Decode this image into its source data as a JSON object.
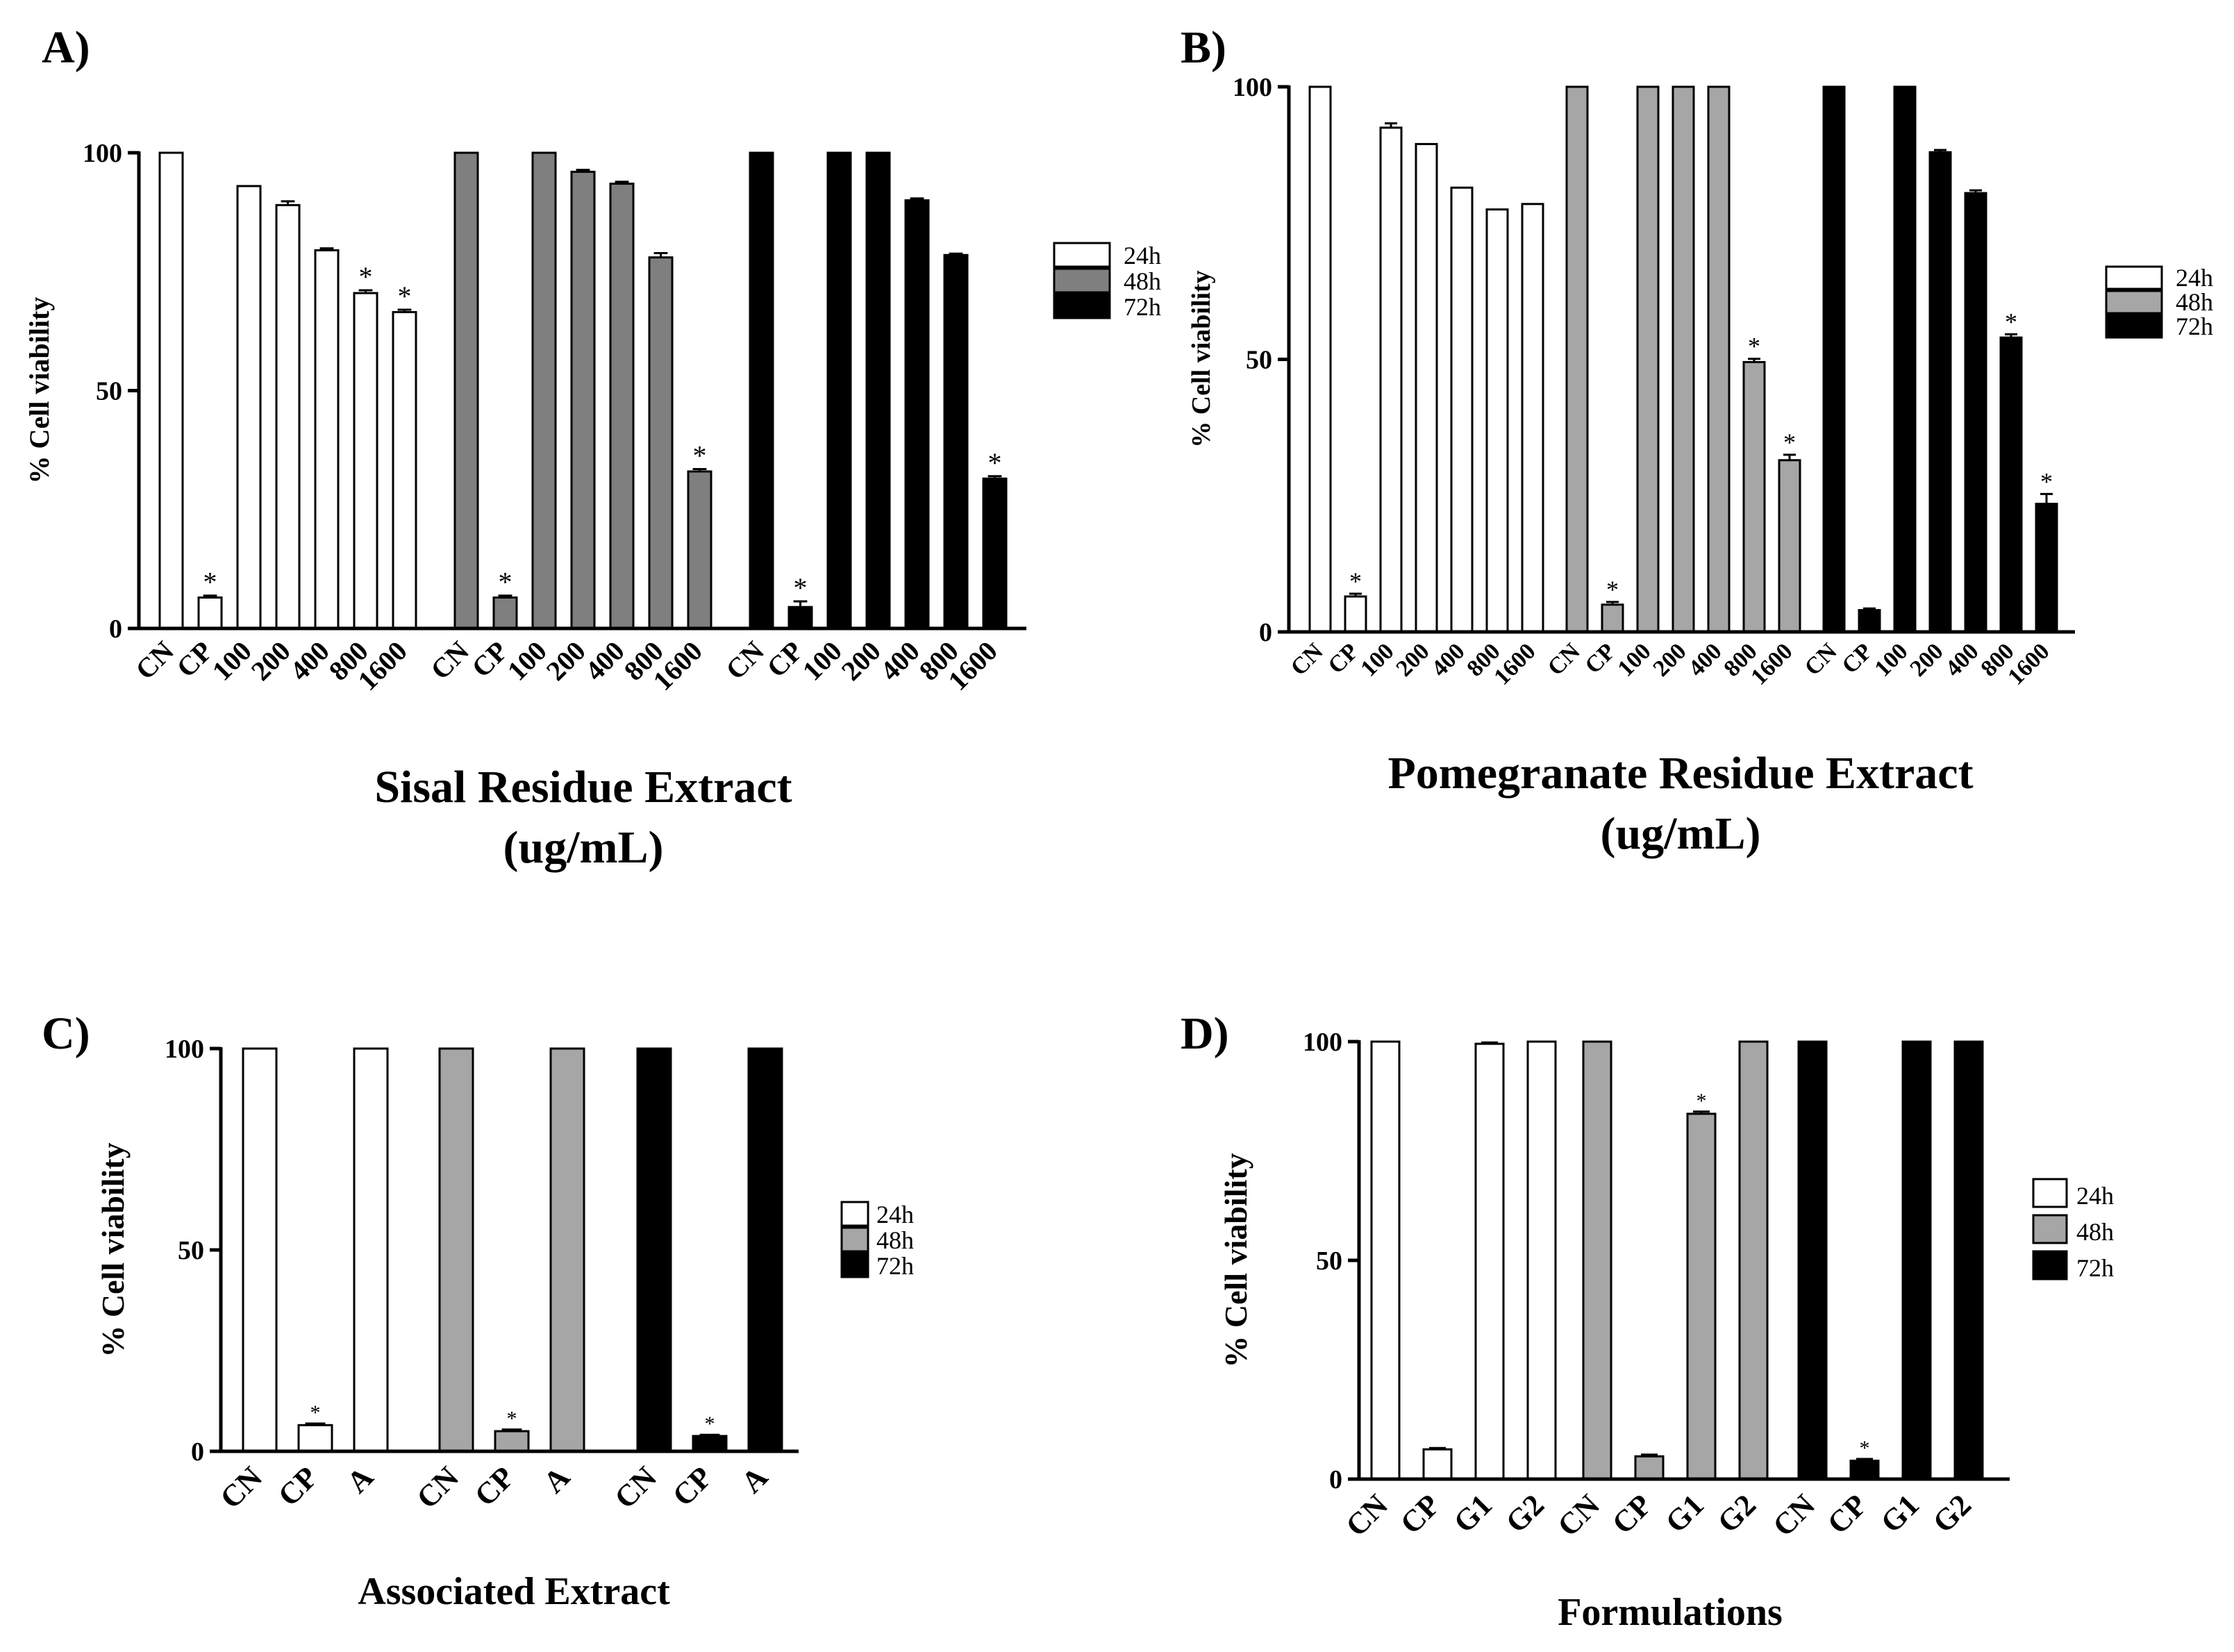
{
  "figure": {
    "colors": {
      "24h": "#ffffff",
      "48h_A": "#7f7f7f",
      "48h": "#a6a6a6",
      "72h": "#000000",
      "axis": "#000000"
    }
  },
  "chart_data": [
    {
      "panel_label": "A)",
      "type": "bar",
      "title": "",
      "xlabel": [
        "Sisal Residue Extract",
        "(ug/mL)"
      ],
      "ylabel": "% Cell viability",
      "ylim": [
        0,
        100
      ],
      "yticks": [
        0,
        50,
        100
      ],
      "grid": false,
      "legend_position": "right",
      "categories": [
        "CN",
        "CP",
        "100",
        "200",
        "400",
        "800",
        "1600"
      ],
      "series": [
        {
          "name": "24h",
          "values": [
            100,
            6.5,
            93,
            89,
            79.5,
            70.5,
            66.5
          ],
          "errors": [
            0,
            0.4,
            0,
            0.8,
            0.4,
            0.6,
            0.5
          ],
          "significant": [
            false,
            true,
            false,
            false,
            false,
            true,
            true
          ]
        },
        {
          "name": "48h",
          "values": [
            100,
            6.5,
            100,
            96,
            93.5,
            78,
            33
          ],
          "errors": [
            0,
            0.4,
            0,
            0.4,
            0.4,
            0.9,
            0.5
          ],
          "significant": [
            false,
            true,
            false,
            false,
            false,
            false,
            true
          ]
        },
        {
          "name": "72h",
          "values": [
            100,
            4.5,
            100,
            100,
            90,
            78.5,
            31.5
          ],
          "errors": [
            0,
            1.2,
            0,
            0,
            0.4,
            0.3,
            0.5
          ],
          "significant": [
            false,
            true,
            false,
            false,
            false,
            false,
            true
          ]
        }
      ]
    },
    {
      "panel_label": "B)",
      "type": "bar",
      "title": "",
      "xlabel": [
        "Pomegranate Residue Extract",
        "(ug/mL)"
      ],
      "ylabel": "% Cell viability",
      "ylim": [
        0,
        100
      ],
      "yticks": [
        0,
        50,
        100
      ],
      "grid": false,
      "legend_position": "right",
      "categories": [
        "CN",
        "CP",
        "100",
        "200",
        "400",
        "800",
        "1600"
      ],
      "series": [
        {
          "name": "24h",
          "values": [
            100,
            6.5,
            92.5,
            89.5,
            81.5,
            77.5,
            78.5
          ],
          "errors": [
            0,
            0.5,
            0.8,
            0,
            0,
            0,
            0
          ],
          "significant": [
            false,
            true,
            false,
            false,
            false,
            false,
            false
          ]
        },
        {
          "name": "48h",
          "values": [
            100,
            5,
            100,
            100,
            100,
            49.5,
            31.5
          ],
          "errors": [
            0,
            0.5,
            0,
            0,
            0,
            0.6,
            1
          ],
          "significant": [
            false,
            true,
            false,
            false,
            false,
            true,
            true
          ]
        },
        {
          "name": "72h",
          "values": [
            100,
            4,
            100,
            88,
            80.5,
            54,
            23.5
          ],
          "errors": [
            0,
            0.3,
            0,
            0.4,
            0.5,
            0.6,
            1.8
          ],
          "significant": [
            false,
            false,
            false,
            false,
            false,
            true,
            true
          ]
        }
      ]
    },
    {
      "panel_label": "C)",
      "type": "bar",
      "title": "",
      "xlabel": [
        "Associated Extract"
      ],
      "ylabel": "% Cell viability",
      "ylim": [
        0,
        100
      ],
      "yticks": [
        0,
        50,
        100
      ],
      "grid": false,
      "legend_position": "right",
      "categories": [
        "CN",
        "CP",
        "A"
      ],
      "series": [
        {
          "name": "24h",
          "values": [
            100,
            6.5,
            100
          ],
          "errors": [
            0,
            0.4,
            0
          ],
          "significant": [
            false,
            true,
            false
          ]
        },
        {
          "name": "48h",
          "values": [
            100,
            5,
            100
          ],
          "errors": [
            0,
            0.4,
            0
          ],
          "significant": [
            false,
            true,
            false
          ]
        },
        {
          "name": "72h",
          "values": [
            100,
            3.8,
            100
          ],
          "errors": [
            0,
            0.3,
            0
          ],
          "significant": [
            false,
            true,
            false
          ]
        }
      ]
    },
    {
      "panel_label": "D)",
      "type": "bar",
      "title": "",
      "xlabel": [
        "Formulations"
      ],
      "ylabel": "% Cell viability",
      "ylim": [
        0,
        100
      ],
      "yticks": [
        0,
        50,
        100
      ],
      "grid": false,
      "legend_position": "right",
      "categories": [
        "CN",
        "CP",
        "G1",
        "G2"
      ],
      "series": [
        {
          "name": "24h",
          "values": [
            100,
            6.8,
            99.5,
            100
          ],
          "errors": [
            0,
            0.3,
            0.3,
            0
          ],
          "significant": [
            false,
            false,
            false,
            false
          ]
        },
        {
          "name": "48h",
          "values": [
            100,
            5.2,
            83.5,
            100
          ],
          "errors": [
            0,
            0.4,
            0.5,
            0
          ],
          "significant": [
            false,
            false,
            true,
            false
          ]
        },
        {
          "name": "72h",
          "values": [
            100,
            4.2,
            100,
            100
          ],
          "errors": [
            0,
            0.4,
            0,
            0
          ],
          "significant": [
            false,
            true,
            false,
            false
          ]
        }
      ]
    }
  ]
}
